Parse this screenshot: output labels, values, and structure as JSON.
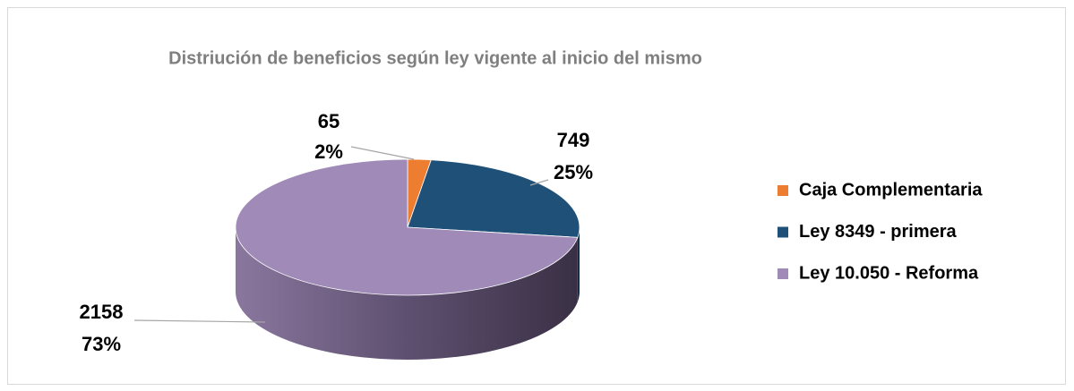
{
  "chart_data": {
    "type": "pie3d",
    "title": "Distriución de beneficios según ley vigente al inicio del mismo",
    "categories": [
      "Caja Complementaria",
      "Ley 8349 - primera",
      "Ley 10.050 - Reforma"
    ],
    "values": [
      65,
      749,
      2158
    ],
    "percentages": [
      2,
      25,
      73
    ],
    "percentage_labels": [
      "2%",
      "25%",
      "73%"
    ],
    "colors": [
      "#ed7d31",
      "#1f5078",
      "#a08ab8"
    ],
    "legend": "right"
  }
}
